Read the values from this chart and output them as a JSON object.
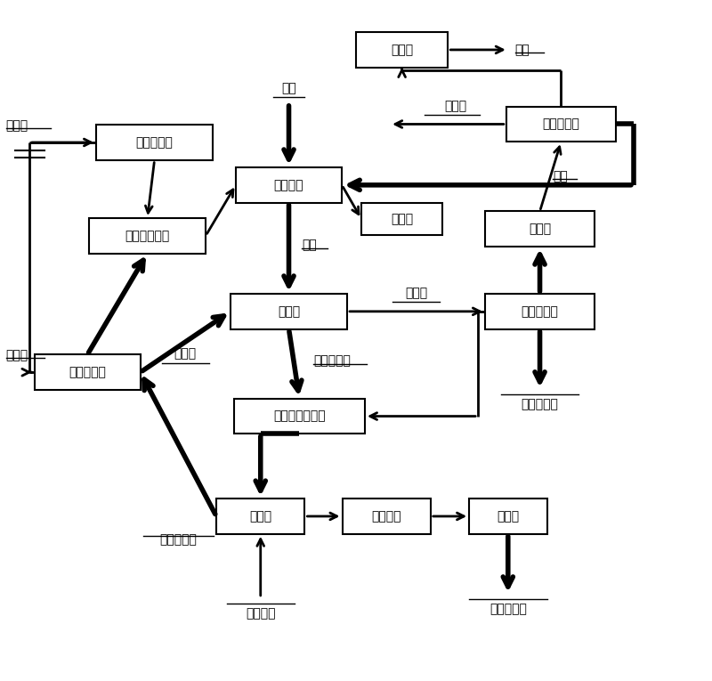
{
  "bg_color": "#ffffff",
  "lw": 1.5,
  "arrow_lw": 2.0,
  "thick_arrow_lw": 4.0,
  "boxes": {
    "沉氟槽": [
      0.565,
      0.93,
      0.13,
      0.052
    ],
    "排放萃取槽": [
      0.79,
      0.82,
      0.155,
      0.052
    ],
    "配液溜槽": [
      0.405,
      0.73,
      0.15,
      0.052
    ],
    "皂化槽": [
      0.565,
      0.68,
      0.115,
      0.048
    ],
    "有机相再生槽": [
      0.205,
      0.655,
      0.165,
      0.052
    ],
    "浓盐酸储槽": [
      0.215,
      0.793,
      0.165,
      0.052
    ],
    "萃取槽": [
      0.405,
      0.543,
      0.165,
      0.052
    ],
    "水相循环槽": [
      0.76,
      0.543,
      0.155,
      0.052
    ],
    "中和槽": [
      0.76,
      0.665,
      0.155,
      0.052
    ],
    "有机相储槽": [
      0.12,
      0.453,
      0.15,
      0.052
    ],
    "负载有机相储槽": [
      0.42,
      0.388,
      0.185,
      0.052
    ],
    "反萃槽": [
      0.365,
      0.24,
      0.125,
      0.052
    ],
    "反萃液槽": [
      0.543,
      0.24,
      0.125,
      0.052
    ],
    "吸附槽": [
      0.715,
      0.24,
      0.11,
      0.052
    ]
  }
}
